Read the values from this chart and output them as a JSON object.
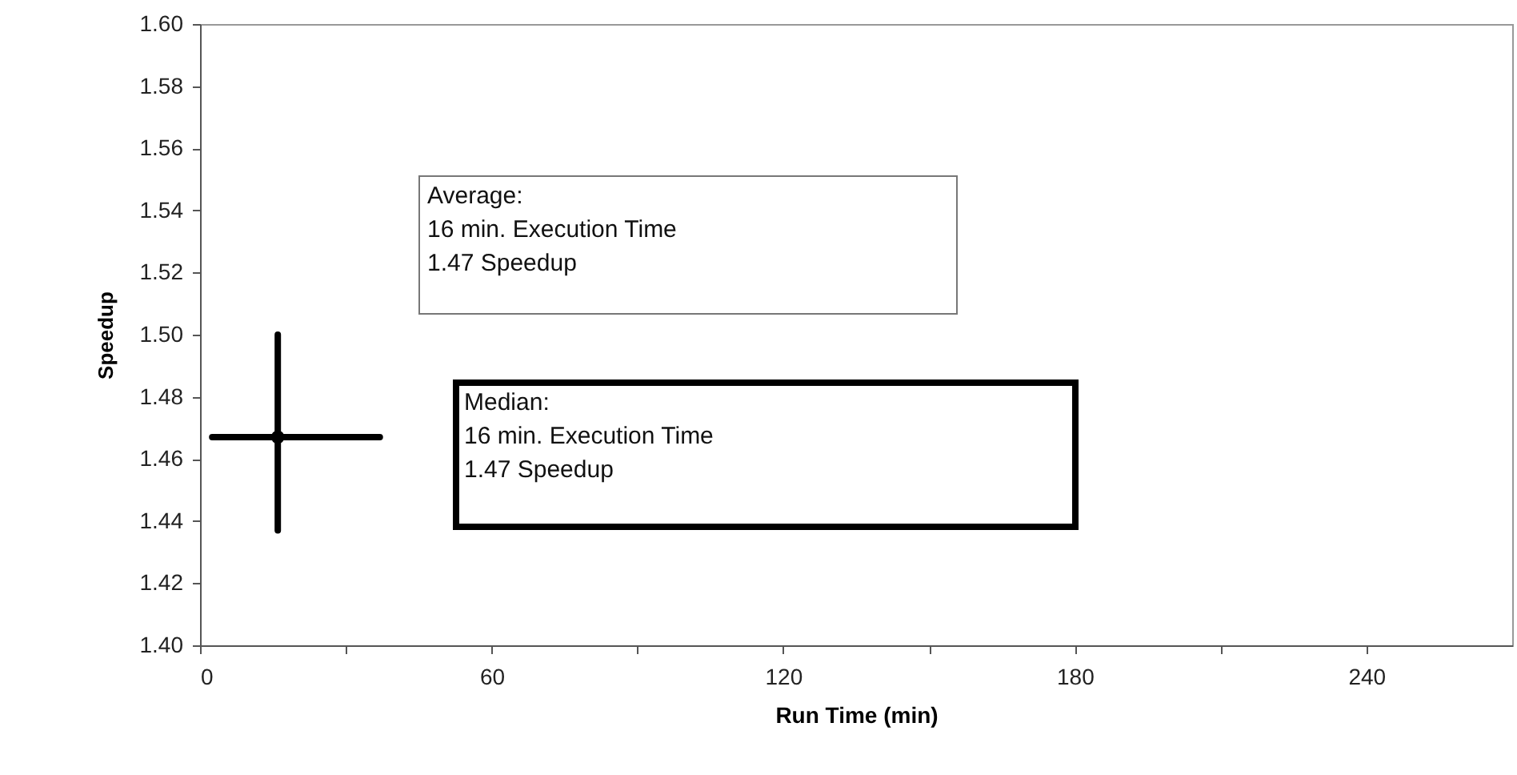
{
  "chart_data": {
    "type": "scatter",
    "xlabel": "Run Time (min)",
    "ylabel": "Speedup",
    "x": [
      16
    ],
    "values": [
      1.467
    ],
    "errors": [
      [
        1.437,
        1.5
      ]
    ],
    "xerrors": [
      [
        2.5,
        37
      ]
    ],
    "color": "#000000",
    "marker": "circle",
    "xlim": [
      0,
      270
    ],
    "xticks": [
      0,
      {
        "value": 30,
        "label": null
      },
      60,
      {
        "value": 90,
        "label": null
      },
      120,
      {
        "value": 150,
        "label": null
      },
      180,
      {
        "value": 210,
        "label": null
      },
      240
    ],
    "ylim": [
      1.4,
      1.6
    ],
    "yticks": [
      {
        "value": 1.4,
        "label": "1.40"
      },
      {
        "value": 1.42,
        "label": "1.42"
      },
      {
        "value": 1.44,
        "label": "1.44"
      },
      {
        "value": 1.46,
        "label": "1.46"
      },
      {
        "value": 1.48,
        "label": "1.48"
      },
      {
        "value": 1.5,
        "label": "1.50"
      },
      {
        "value": 1.52,
        "label": "1.52"
      },
      {
        "value": 1.54,
        "label": "1.54"
      },
      {
        "value": 1.56,
        "label": "1.56"
      },
      {
        "value": 1.58,
        "label": "1.58"
      },
      {
        "value": 1.6,
        "label": "1.60"
      }
    ],
    "grid": false,
    "annotations": [
      "Average:\n  16 min. Execution Time\n  1.47 Speedup",
      "Median:\n  16 min. Execution Time\n  1.47 Speedup"
    ]
  }
}
